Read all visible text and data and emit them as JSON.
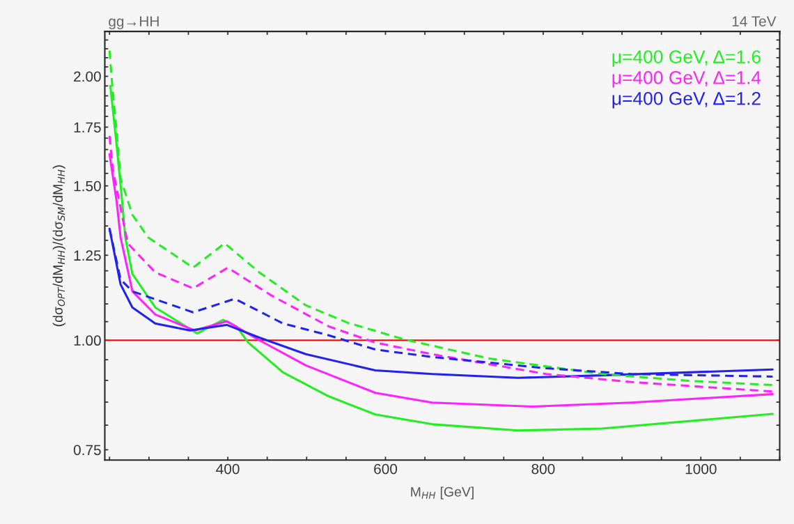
{
  "chart_data": {
    "type": "line",
    "xlabel": "M$_{HH}$ [GeV]",
    "ylabel": "(dσ$_{OPT}$/dM$_{HH}$)/(dσ$_{SM}$/dM$_{HH}$)",
    "annotations": [
      "gg→HH",
      "14 TeV"
    ],
    "log": "y",
    "xlim": [
      244,
      1100
    ],
    "ylim": [
      0.73,
      2.25
    ],
    "xticks": [
      {
        "value": 250,
        "label": null
      },
      {
        "value": 300,
        "label": null
      },
      {
        "value": 350,
        "label": null
      },
      400,
      {
        "value": 450,
        "label": null
      },
      {
        "value": 500,
        "label": null
      },
      {
        "value": 550,
        "label": null
      },
      600,
      {
        "value": 650,
        "label": null
      },
      {
        "value": 700,
        "label": null
      },
      {
        "value": 750,
        "label": null
      },
      800,
      {
        "value": 850,
        "label": null
      },
      {
        "value": 900,
        "label": null
      },
      {
        "value": 950,
        "label": null
      },
      1000,
      {
        "value": 1050,
        "label": null
      },
      {
        "value": 1100,
        "label": null
      }
    ],
    "yticks": [
      {
        "value": 0.75,
        "label": "0.75"
      },
      {
        "value": 0.8,
        "label": null
      },
      {
        "value": 0.85,
        "label": null
      },
      {
        "value": 0.9,
        "label": null
      },
      {
        "value": 0.95,
        "label": null
      },
      {
        "value": 1.0,
        "label": "1.00"
      },
      {
        "value": 1.05,
        "label": null
      },
      {
        "value": 1.1,
        "label": null
      },
      {
        "value": 1.15,
        "label": null
      },
      {
        "value": 1.2,
        "label": null
      },
      {
        "value": 1.25,
        "label": "1.25"
      },
      {
        "value": 1.3,
        "label": null
      },
      {
        "value": 1.35,
        "label": null
      },
      {
        "value": 1.4,
        "label": null
      },
      {
        "value": 1.45,
        "label": null
      },
      {
        "value": 1.5,
        "label": "1.50"
      },
      {
        "value": 1.55,
        "label": null
      },
      {
        "value": 1.6,
        "label": null
      },
      {
        "value": 1.65,
        "label": null
      },
      {
        "value": 1.7,
        "label": null
      },
      {
        "value": 1.75,
        "label": "1.75"
      },
      {
        "value": 1.8,
        "label": null
      },
      {
        "value": 1.85,
        "label": null
      },
      {
        "value": 1.9,
        "label": null
      },
      {
        "value": 1.95,
        "label": null
      },
      {
        "value": 2.0,
        "label": "2.00"
      },
      {
        "value": 2.05,
        "label": null
      },
      {
        "value": 2.1,
        "label": null
      },
      {
        "value": 2.15,
        "label": null
      },
      {
        "value": 2.2,
        "label": null
      }
    ],
    "grid": false,
    "legend": "top right",
    "marker": "none",
    "ref_lines": [
      {
        "axis": "y",
        "value": 1.0,
        "label": null,
        "color": "#ff0000",
        "line_style": "solid"
      }
    ],
    "series": [
      {
        "name": "μ=400 GeV, Δ=1.6",
        "color": "#22ee22",
        "line_style": "solid",
        "x": [
          251,
          259,
          266,
          270,
          279,
          308,
          361,
          394,
          411,
          426,
          470,
          528,
          587,
          659,
          768,
          875,
          1091
        ],
        "values": [
          1.95,
          1.67,
          1.44,
          1.31,
          1.19,
          1.09,
          1.018,
          1.055,
          1.037,
          0.994,
          0.919,
          0.863,
          0.823,
          0.802,
          0.789,
          0.793,
          0.824
        ]
      },
      {
        "name": "μ=400 GeV, Δ=1.4",
        "color": "#ff22ff",
        "line_style": "solid",
        "x": [
          250,
          259,
          264,
          279,
          308,
          358,
          399,
          440,
          499,
          587,
          659,
          786,
          912,
          1091
        ],
        "values": [
          1.63,
          1.44,
          1.31,
          1.137,
          1.07,
          1.026,
          1.051,
          1.0,
          0.936,
          0.871,
          0.849,
          0.84,
          0.849,
          0.868
        ]
      },
      {
        "name": "μ=400 GeV, Δ=1.2",
        "color": "#2222ee",
        "line_style": "solid",
        "x": [
          250,
          264,
          279,
          308,
          352,
          399,
          440,
          499,
          587,
          659,
          768,
          875,
          1091
        ],
        "values": [
          1.34,
          1.158,
          1.09,
          1.045,
          1.026,
          1.041,
          1.007,
          0.964,
          0.924,
          0.915,
          0.906,
          0.912,
          0.926
        ]
      },
      {
        "color": "#22ee22",
        "line_style": "dashed",
        "x": [
          250,
          253.5,
          259,
          264,
          279,
          299,
          356,
          396,
          440,
          499,
          552,
          624,
          732,
          875,
          984,
          1091
        ],
        "values": [
          2.14,
          1.95,
          1.73,
          1.53,
          1.39,
          1.31,
          1.21,
          1.29,
          1.195,
          1.096,
          1.047,
          1.002,
          0.953,
          0.915,
          0.899,
          0.889
        ]
      },
      {
        "color": "#ff22ff",
        "line_style": "dashed",
        "x": [
          250,
          254,
          273,
          308,
          356,
          400,
          455,
          528,
          587,
          659,
          804,
          912,
          1091
        ],
        "values": [
          1.71,
          1.57,
          1.29,
          1.195,
          1.146,
          1.21,
          1.125,
          1.037,
          0.994,
          0.964,
          0.915,
          0.896,
          0.874
        ]
      },
      {
        "color": "#2222ee",
        "line_style": "dashed",
        "x": [
          250,
          264,
          279,
          356,
          409,
          470,
          528,
          587,
          659,
          804,
          912,
          1091
        ],
        "values": [
          1.34,
          1.173,
          1.137,
          1.076,
          1.115,
          1.045,
          1.013,
          0.976,
          0.957,
          0.929,
          0.915,
          0.909
        ]
      }
    ]
  }
}
